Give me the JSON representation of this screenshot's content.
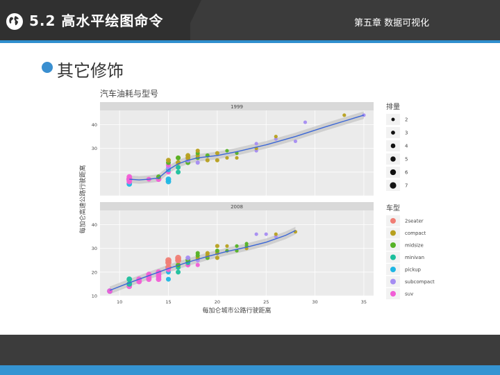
{
  "header": {
    "title": "5.2 高水平绘图命令",
    "chapter": "第五章 数据可视化",
    "icon": "globe-icon"
  },
  "section": {
    "bullet_text": "其它修饰"
  },
  "chart_data": {
    "type": "scatter",
    "title": "汽车油耗与型号",
    "xlabel": "每加仑城市公路行驶距离",
    "ylabel": "每加仑高速公路行驶距离",
    "xlim": [
      8,
      36
    ],
    "xticks": [
      "10",
      "15",
      "20",
      "25",
      "30",
      "35"
    ],
    "panels": [
      {
        "label": "1999",
        "ylim": [
          10,
          46
        ],
        "yticks": [
          "30",
          "40"
        ],
        "smooth": [
          [
            11,
            17
          ],
          [
            12,
            16.7
          ],
          [
            13,
            17
          ],
          [
            14,
            17.5
          ],
          [
            15,
            21
          ],
          [
            16,
            23.5
          ],
          [
            17,
            25
          ],
          [
            18,
            26
          ],
          [
            20,
            27
          ],
          [
            22,
            28.6
          ],
          [
            25,
            31.5
          ],
          [
            28,
            35
          ],
          [
            31,
            39
          ],
          [
            33,
            41.5
          ],
          [
            35,
            44
          ]
        ],
        "points": [
          {
            "x": 11,
            "y": 15,
            "class": "pickup",
            "displ": 5
          },
          {
            "x": 11,
            "y": 16,
            "class": "suv",
            "displ": 5
          },
          {
            "x": 11,
            "y": 17,
            "class": "suv",
            "displ": 6
          },
          {
            "x": 11,
            "y": 18,
            "class": "suv",
            "displ": 5
          },
          {
            "x": 13,
            "y": 17,
            "class": "suv",
            "displ": 4
          },
          {
            "x": 14,
            "y": 17,
            "class": "suv",
            "displ": 5
          },
          {
            "x": 14,
            "y": 18,
            "class": "midsize",
            "displ": 4
          },
          {
            "x": 15,
            "y": 16,
            "class": "pickup",
            "displ": 5
          },
          {
            "x": 15,
            "y": 17,
            "class": "pickup",
            "displ": 5
          },
          {
            "x": 15,
            "y": 20,
            "class": "suv",
            "displ": 4
          },
          {
            "x": 15,
            "y": 21,
            "class": "pickup",
            "displ": 4
          },
          {
            "x": 15,
            "y": 22,
            "class": "subcompact",
            "displ": 4
          },
          {
            "x": 15,
            "y": 23,
            "class": "suv",
            "displ": 4
          },
          {
            "x": 15,
            "y": 24,
            "class": "midsize",
            "displ": 4
          },
          {
            "x": 15,
            "y": 25,
            "class": "compact",
            "displ": 4
          },
          {
            "x": 16,
            "y": 20,
            "class": "minivan",
            "displ": 4
          },
          {
            "x": 16,
            "y": 22,
            "class": "minivan",
            "displ": 4
          },
          {
            "x": 16,
            "y": 24,
            "class": "compact",
            "displ": 4
          },
          {
            "x": 16,
            "y": 26,
            "class": "compact",
            "displ": 4
          },
          {
            "x": 16,
            "y": 26,
            "class": "midsize",
            "displ": 4
          },
          {
            "x": 17,
            "y": 24,
            "class": "midsize",
            "displ": 4
          },
          {
            "x": 17,
            "y": 25,
            "class": "subcompact",
            "displ": 4
          },
          {
            "x": 17,
            "y": 26,
            "class": "compact",
            "displ": 4
          },
          {
            "x": 17,
            "y": 27,
            "class": "compact",
            "displ": 4
          },
          {
            "x": 18,
            "y": 24,
            "class": "subcompact",
            "displ": 3
          },
          {
            "x": 18,
            "y": 26,
            "class": "midsize",
            "displ": 3
          },
          {
            "x": 18,
            "y": 27,
            "class": "compact",
            "displ": 3
          },
          {
            "x": 18,
            "y": 28,
            "class": "midsize",
            "displ": 3
          },
          {
            "x": 18,
            "y": 29,
            "class": "compact",
            "displ": 3
          },
          {
            "x": 19,
            "y": 25,
            "class": "compact",
            "displ": 3
          },
          {
            "x": 19,
            "y": 27,
            "class": "midsize",
            "displ": 3
          },
          {
            "x": 20,
            "y": 25,
            "class": "compact",
            "displ": 3
          },
          {
            "x": 20,
            "y": 28,
            "class": "compact",
            "displ": 3
          },
          {
            "x": 21,
            "y": 26,
            "class": "compact",
            "displ": 2
          },
          {
            "x": 21,
            "y": 29,
            "class": "midsize",
            "displ": 2
          },
          {
            "x": 22,
            "y": 26,
            "class": "compact",
            "displ": 2
          },
          {
            "x": 22,
            "y": 28,
            "class": "midsize",
            "displ": 2
          },
          {
            "x": 24,
            "y": 29,
            "class": "subcompact",
            "displ": 2
          },
          {
            "x": 24,
            "y": 30,
            "class": "compact",
            "displ": 2
          },
          {
            "x": 24,
            "y": 32,
            "class": "subcompact",
            "displ": 2
          },
          {
            "x": 26,
            "y": 34,
            "class": "subcompact",
            "displ": 2
          },
          {
            "x": 26,
            "y": 35,
            "class": "compact",
            "displ": 2
          },
          {
            "x": 28,
            "y": 33,
            "class": "subcompact",
            "displ": 2
          },
          {
            "x": 29,
            "y": 41,
            "class": "subcompact",
            "displ": 2
          },
          {
            "x": 33,
            "y": 44,
            "class": "compact",
            "displ": 2
          },
          {
            "x": 35,
            "y": 44,
            "class": "subcompact",
            "displ": 2
          }
        ]
      },
      {
        "label": "2008",
        "ylim": [
          10,
          46
        ],
        "yticks": [
          "10",
          "20",
          "30",
          "40"
        ],
        "smooth": [
          [
            9,
            12.3
          ],
          [
            11,
            15.5
          ],
          [
            13,
            18.5
          ],
          [
            15,
            21.5
          ],
          [
            17,
            24.2
          ],
          [
            19,
            26.6
          ],
          [
            21,
            28.7
          ],
          [
            23,
            30.5
          ],
          [
            25,
            32.6
          ],
          [
            27,
            35.5
          ],
          [
            28,
            37.5
          ]
        ],
        "points": [
          {
            "x": 9,
            "y": 12,
            "class": "pickup",
            "displ": 5
          },
          {
            "x": 9,
            "y": 12,
            "class": "suv",
            "displ": 5
          },
          {
            "x": 11,
            "y": 14,
            "class": "suv",
            "displ": 5
          },
          {
            "x": 11,
            "y": 15,
            "class": "minivan",
            "displ": 5
          },
          {
            "x": 11,
            "y": 17,
            "class": "minivan",
            "displ": 5
          },
          {
            "x": 12,
            "y": 16,
            "class": "suv",
            "displ": 5
          },
          {
            "x": 12,
            "y": 17,
            "class": "suv",
            "displ": 5
          },
          {
            "x": 13,
            "y": 17,
            "class": "suv",
            "displ": 5
          },
          {
            "x": 13,
            "y": 18,
            "class": "suv",
            "displ": 5
          },
          {
            "x": 13,
            "y": 19,
            "class": "suv",
            "displ": 5
          },
          {
            "x": 14,
            "y": 17,
            "class": "suv",
            "displ": 5
          },
          {
            "x": 14,
            "y": 18,
            "class": "suv",
            "displ": 5
          },
          {
            "x": 14,
            "y": 19,
            "class": "suv",
            "displ": 5
          },
          {
            "x": 14,
            "y": 20,
            "class": "suv",
            "displ": 5
          },
          {
            "x": 15,
            "y": 17,
            "class": "pickup",
            "displ": 4
          },
          {
            "x": 15,
            "y": 20,
            "class": "pickup",
            "displ": 4
          },
          {
            "x": 15,
            "y": 22,
            "class": "2seater",
            "displ": 6
          },
          {
            "x": 15,
            "y": 24,
            "class": "2seater",
            "displ": 6
          },
          {
            "x": 15,
            "y": 25,
            "class": "2seater",
            "displ": 6
          },
          {
            "x": 15,
            "y": 21,
            "class": "suv",
            "displ": 4
          },
          {
            "x": 16,
            "y": 20,
            "class": "minivan",
            "displ": 4
          },
          {
            "x": 16,
            "y": 22,
            "class": "minivan",
            "displ": 4
          },
          {
            "x": 16,
            "y": 23,
            "class": "midsize",
            "displ": 4
          },
          {
            "x": 16,
            "y": 25,
            "class": "2seater",
            "displ": 6
          },
          {
            "x": 16,
            "y": 26,
            "class": "2seater",
            "displ": 6
          },
          {
            "x": 17,
            "y": 23,
            "class": "suv",
            "displ": 4
          },
          {
            "x": 17,
            "y": 24,
            "class": "minivan",
            "displ": 4
          },
          {
            "x": 17,
            "y": 25,
            "class": "midsize",
            "displ": 4
          },
          {
            "x": 17,
            "y": 26,
            "class": "subcompact",
            "displ": 4
          },
          {
            "x": 18,
            "y": 23,
            "class": "suv",
            "displ": 3
          },
          {
            "x": 18,
            "y": 25,
            "class": "subcompact",
            "displ": 3
          },
          {
            "x": 18,
            "y": 26,
            "class": "compact",
            "displ": 3
          },
          {
            "x": 18,
            "y": 27,
            "class": "midsize",
            "displ": 3
          },
          {
            "x": 18,
            "y": 28,
            "class": "midsize",
            "displ": 3
          },
          {
            "x": 19,
            "y": 26,
            "class": "midsize",
            "displ": 3
          },
          {
            "x": 19,
            "y": 27,
            "class": "compact",
            "displ": 3
          },
          {
            "x": 19,
            "y": 28,
            "class": "compact",
            "displ": 3
          },
          {
            "x": 20,
            "y": 26,
            "class": "compact",
            "displ": 3
          },
          {
            "x": 20,
            "y": 28,
            "class": "compact",
            "displ": 3
          },
          {
            "x": 20,
            "y": 29,
            "class": "midsize",
            "displ": 3
          },
          {
            "x": 20,
            "y": 31,
            "class": "compact",
            "displ": 3
          },
          {
            "x": 21,
            "y": 29,
            "class": "midsize",
            "displ": 2
          },
          {
            "x": 21,
            "y": 31,
            "class": "compact",
            "displ": 2
          },
          {
            "x": 22,
            "y": 29,
            "class": "midsize",
            "displ": 2
          },
          {
            "x": 22,
            "y": 31,
            "class": "midsize",
            "displ": 2
          },
          {
            "x": 23,
            "y": 30,
            "class": "compact",
            "displ": 2
          },
          {
            "x": 23,
            "y": 31,
            "class": "midsize",
            "displ": 2
          },
          {
            "x": 23,
            "y": 32,
            "class": "midsize",
            "displ": 2
          },
          {
            "x": 24,
            "y": 36,
            "class": "subcompact",
            "displ": 2
          },
          {
            "x": 25,
            "y": 36,
            "class": "subcompact",
            "displ": 2
          },
          {
            "x": 26,
            "y": 35,
            "class": "subcompact",
            "displ": 2
          },
          {
            "x": 26,
            "y": 36,
            "class": "compact",
            "displ": 2
          },
          {
            "x": 28,
            "y": 37,
            "class": "compact",
            "displ": 2
          }
        ]
      }
    ],
    "legend_displ": {
      "title": "排量",
      "entries": [
        {
          "label": "2",
          "value": 2
        },
        {
          "label": "3",
          "value": 3
        },
        {
          "label": "4",
          "value": 4
        },
        {
          "label": "5",
          "value": 5
        },
        {
          "label": "6",
          "value": 6
        },
        {
          "label": "7",
          "value": 7
        }
      ]
    },
    "legend_class": {
      "title": "车型",
      "entries": [
        {
          "label": "2seater",
          "color": "#f07d74"
        },
        {
          "label": "compact",
          "color": "#b7a01e"
        },
        {
          "label": "midsize",
          "color": "#55b225"
        },
        {
          "label": "minivan",
          "color": "#1bbf9c"
        },
        {
          "label": "pickup",
          "color": "#1fb6e4"
        },
        {
          "label": "subcompact",
          "color": "#a58cf2"
        },
        {
          "label": "suv",
          "color": "#f15ed6"
        }
      ]
    },
    "smooth_color": "#3a66d6",
    "grid": true,
    "legend_position": "right"
  }
}
